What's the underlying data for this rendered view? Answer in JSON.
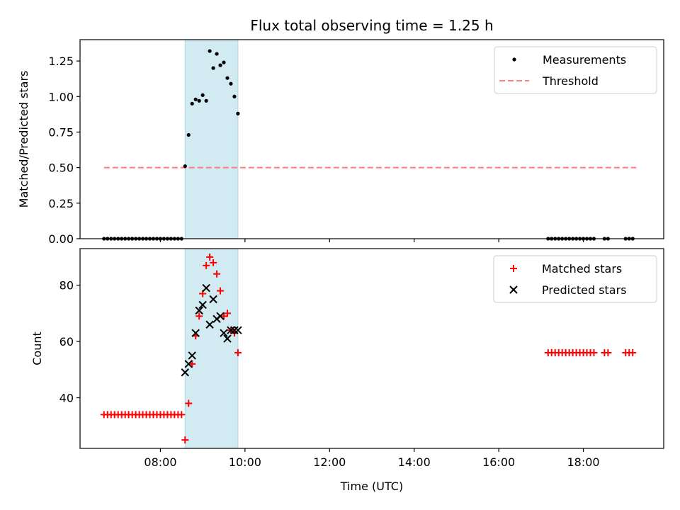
{
  "title": "Flux total observing time = 1.25 h",
  "xlabel": "Time (UTC)",
  "colors": {
    "measurement": "#000000",
    "threshold": "#ff7f7f",
    "matched": "#ff0000",
    "predicted": "#000000",
    "shade": "#add8e6"
  },
  "chart_data": [
    {
      "type": "scatter",
      "panel": "top",
      "ylabel": "Matched/Predicted stars",
      "xlim": [
        "06:06",
        "19:54"
      ],
      "ylim": [
        0,
        1.4
      ],
      "yticks": [
        0.0,
        0.25,
        0.5,
        0.75,
        1.0,
        1.25
      ],
      "ytick_labels": [
        "0.00",
        "0.25",
        "0.50",
        "0.75",
        "1.00",
        "1.25"
      ],
      "xticks": [
        "08:00",
        "10:00",
        "12:00",
        "14:00",
        "16:00",
        "18:00"
      ],
      "shaded_span": [
        "08:35",
        "09:50"
      ],
      "legend": {
        "location": "upper right",
        "entries": [
          "Measurements",
          "Threshold"
        ]
      },
      "threshold": {
        "name": "Threshold",
        "y": 0.5,
        "x": [
          "06:40",
          "19:15"
        ]
      },
      "series": [
        {
          "name": "Measurements",
          "x": [
            "06:40",
            "06:45",
            "06:50",
            "06:55",
            "07:00",
            "07:05",
            "07:10",
            "07:15",
            "07:20",
            "07:25",
            "07:30",
            "07:35",
            "07:40",
            "07:45",
            "07:50",
            "07:55",
            "08:00",
            "08:05",
            "08:10",
            "08:15",
            "08:20",
            "08:25",
            "08:30",
            "08:35",
            "08:40",
            "08:45",
            "08:50",
            "08:55",
            "09:00",
            "09:05",
            "09:10",
            "09:15",
            "09:20",
            "09:25",
            "09:30",
            "09:35",
            "09:40",
            "09:45",
            "09:50",
            "17:10",
            "17:15",
            "17:20",
            "17:25",
            "17:30",
            "17:35",
            "17:40",
            "17:45",
            "17:50",
            "17:55",
            "18:00",
            "18:05",
            "18:10",
            "18:15",
            "18:30",
            "18:35",
            "19:00",
            "19:05",
            "19:10"
          ],
          "y": [
            0,
            0,
            0,
            0,
            0,
            0,
            0,
            0,
            0,
            0,
            0,
            0,
            0,
            0,
            0,
            0,
            0,
            0,
            0,
            0,
            0,
            0,
            0,
            0.51,
            0.73,
            0.95,
            0.98,
            0.97,
            1.01,
            0.97,
            1.32,
            1.2,
            1.3,
            1.22,
            1.24,
            1.13,
            1.09,
            1.0,
            0.88,
            0,
            0,
            0,
            0,
            0,
            0,
            0,
            0,
            0,
            0,
            0,
            0,
            0,
            0,
            0,
            0,
            0,
            0,
            0
          ]
        }
      ]
    },
    {
      "type": "scatter",
      "panel": "bottom",
      "ylabel": "Count",
      "xlim": [
        "06:06",
        "19:54"
      ],
      "ylim": [
        22,
        93
      ],
      "yticks": [
        40,
        60,
        80
      ],
      "ytick_labels": [
        "40",
        "60",
        "80"
      ],
      "xticks": [
        "08:00",
        "10:00",
        "12:00",
        "14:00",
        "16:00",
        "18:00"
      ],
      "xtick_labels": [
        "08:00",
        "10:00",
        "12:00",
        "14:00",
        "16:00",
        "18:00"
      ],
      "shaded_span": [
        "08:35",
        "09:50"
      ],
      "legend": {
        "location": "upper right",
        "entries": [
          "Matched stars",
          "Predicted stars"
        ]
      },
      "series": [
        {
          "name": "Matched stars",
          "x": [
            "06:40",
            "06:45",
            "06:50",
            "06:55",
            "07:00",
            "07:05",
            "07:10",
            "07:15",
            "07:20",
            "07:25",
            "07:30",
            "07:35",
            "07:40",
            "07:45",
            "07:50",
            "07:55",
            "08:00",
            "08:05",
            "08:10",
            "08:15",
            "08:20",
            "08:25",
            "08:30",
            "08:35",
            "08:40",
            "08:45",
            "08:50",
            "08:55",
            "09:00",
            "09:05",
            "09:10",
            "09:15",
            "09:20",
            "09:25",
            "09:30",
            "09:35",
            "09:40",
            "09:45",
            "09:50",
            "17:10",
            "17:15",
            "17:20",
            "17:25",
            "17:30",
            "17:35",
            "17:40",
            "17:45",
            "17:50",
            "17:55",
            "18:00",
            "18:05",
            "18:10",
            "18:15",
            "18:30",
            "18:35",
            "19:00",
            "19:05",
            "19:10"
          ],
          "y": [
            34,
            34,
            34,
            34,
            34,
            34,
            34,
            34,
            34,
            34,
            34,
            34,
            34,
            34,
            34,
            34,
            34,
            34,
            34,
            34,
            34,
            34,
            34,
            25,
            38,
            52,
            62,
            69,
            77,
            87,
            90,
            88,
            84,
            78,
            69,
            70,
            64,
            63,
            56,
            56,
            56,
            56,
            56,
            56,
            56,
            56,
            56,
            56,
            56,
            56,
            56,
            56,
            56,
            56,
            56,
            56,
            56,
            56
          ]
        },
        {
          "name": "Predicted stars",
          "x": [
            "08:35",
            "08:40",
            "08:45",
            "08:50",
            "08:55",
            "09:00",
            "09:05",
            "09:10",
            "09:15",
            "09:20",
            "09:25",
            "09:30",
            "09:35",
            "09:40",
            "09:45",
            "09:50"
          ],
          "y": [
            49,
            52,
            55,
            63,
            71,
            73,
            79,
            66,
            75,
            68,
            69,
            63,
            61,
            64,
            64,
            64
          ]
        }
      ]
    }
  ]
}
